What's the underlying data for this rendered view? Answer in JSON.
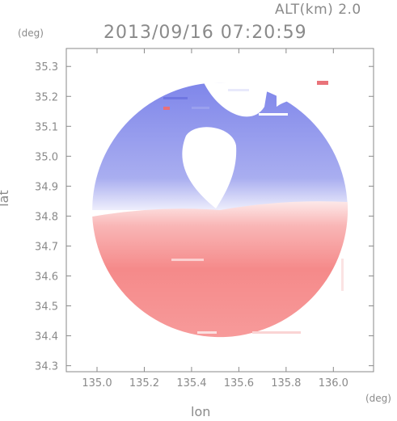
{
  "header": {
    "altitude": "ALT(km) 2.0",
    "timestamp": "2013/09/16 07:20:59"
  },
  "chart_data": {
    "type": "heatmap",
    "title": "2013/09/16 07:20:59",
    "xlabel": "lon",
    "ylabel": "lat",
    "x_unit": "(deg)",
    "y_unit": "(deg)",
    "xlim": [
      134.87,
      136.17
    ],
    "ylim": [
      34.28,
      35.36
    ],
    "x_ticks": [
      "135.0",
      "135.2",
      "135.4",
      "135.6",
      "135.8",
      "136.0"
    ],
    "x_tick_values": [
      135.0,
      135.2,
      135.4,
      135.6,
      135.8,
      136.0
    ],
    "y_ticks": [
      "35.3",
      "35.2",
      "35.1",
      "35.0",
      "34.9",
      "34.8",
      "34.7",
      "34.6",
      "34.5",
      "34.4",
      "34.3"
    ],
    "y_tick_values": [
      35.3,
      35.2,
      35.1,
      35.0,
      34.9,
      34.8,
      34.7,
      34.6,
      34.5,
      34.4,
      34.3
    ],
    "radar_center": [
      135.52,
      34.82
    ],
    "radar_radius_deg": 0.54,
    "colors": {
      "approaching": "#7f86ea",
      "receding": "#f58a8a"
    },
    "grid": false
  }
}
